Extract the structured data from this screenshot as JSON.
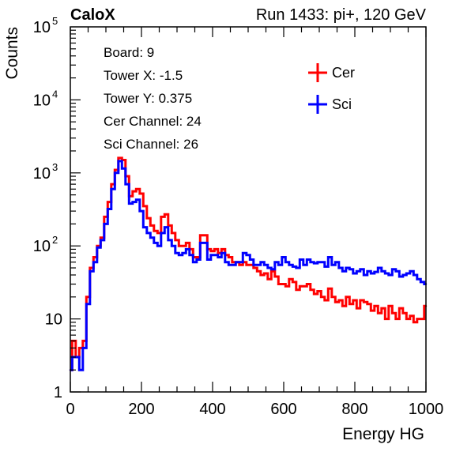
{
  "header": {
    "left_label": "CaloX",
    "right_label": "Run 1433: pi+, 120 GeV"
  },
  "info_box": [
    "Board: 9",
    "Tower X: -1.5",
    "Tower Y: 0.375",
    "Cer Channel: 24",
    "Sci Channel: 26"
  ],
  "colors": {
    "Cer": "#ff0000",
    "Sci": "#0000ff",
    "frame": "#000000"
  },
  "chart_data": {
    "type": "line",
    "xlabel": "Energy HG",
    "ylabel": "Counts",
    "xlim": [
      0,
      1000
    ],
    "ylim": [
      1,
      100000
    ],
    "yscale": "log",
    "x_ticks": [
      "0",
      "200",
      "400",
      "600",
      "800",
      "1000"
    ],
    "y_ticks": [
      {
        "value": 1,
        "base": "1",
        "exp": ""
      },
      {
        "value": 10,
        "base": "10",
        "exp": ""
      },
      {
        "value": 100,
        "base": "10",
        "exp": "2"
      },
      {
        "value": 1000,
        "base": "10",
        "exp": "3"
      },
      {
        "value": 10000,
        "base": "10",
        "exp": "4"
      },
      {
        "value": 100000,
        "base": "10",
        "exp": "5"
      }
    ],
    "legend_position": "top-right",
    "series": [
      {
        "name": "Cer",
        "x": [
          0,
          10,
          20,
          30,
          40,
          50,
          60,
          70,
          80,
          90,
          100,
          110,
          120,
          130,
          140,
          150,
          160,
          170,
          180,
          190,
          200,
          210,
          220,
          230,
          240,
          250,
          260,
          270,
          280,
          290,
          300,
          310,
          320,
          330,
          340,
          350,
          360,
          370,
          380,
          390,
          400,
          410,
          420,
          430,
          440,
          450,
          460,
          470,
          480,
          490,
          500,
          510,
          520,
          530,
          540,
          550,
          560,
          570,
          580,
          590,
          600,
          610,
          620,
          630,
          640,
          650,
          660,
          670,
          680,
          690,
          700,
          710,
          720,
          730,
          740,
          750,
          760,
          770,
          780,
          790,
          800,
          810,
          820,
          830,
          840,
          850,
          860,
          870,
          880,
          890,
          900,
          910,
          920,
          930,
          940,
          950,
          960,
          970,
          980,
          990,
          1000
        ],
        "y": [
          2,
          5,
          3,
          4,
          5,
          20,
          50,
          70,
          100,
          130,
          250,
          400,
          700,
          1100,
          1600,
          1500,
          900,
          480,
          560,
          600,
          520,
          350,
          240,
          190,
          160,
          150,
          250,
          270,
          190,
          150,
          120,
          100,
          100,
          110,
          90,
          70,
          70,
          140,
          140,
          90,
          85,
          90,
          80,
          90,
          75,
          70,
          60,
          60,
          55,
          60,
          55,
          55,
          50,
          45,
          40,
          42,
          35,
          45,
          38,
          30,
          30,
          28,
          35,
          32,
          25,
          28,
          28,
          30,
          25,
          22,
          24,
          20,
          18,
          26,
          20,
          17,
          18,
          15,
          20,
          16,
          18,
          14,
          18,
          17,
          16,
          13,
          15,
          12,
          14,
          10,
          15,
          12,
          10,
          14,
          12,
          10,
          11,
          9,
          10,
          10,
          15
        ]
      },
      {
        "name": "Sci",
        "x": [
          0,
          10,
          20,
          30,
          40,
          50,
          60,
          70,
          80,
          90,
          100,
          110,
          120,
          130,
          140,
          150,
          160,
          170,
          180,
          190,
          200,
          210,
          220,
          230,
          240,
          250,
          260,
          270,
          280,
          290,
          300,
          310,
          320,
          330,
          340,
          350,
          360,
          370,
          380,
          390,
          400,
          410,
          420,
          430,
          440,
          450,
          460,
          470,
          480,
          490,
          500,
          510,
          520,
          530,
          540,
          550,
          560,
          570,
          580,
          590,
          600,
          610,
          620,
          630,
          640,
          650,
          660,
          670,
          680,
          690,
          700,
          710,
          720,
          730,
          740,
          750,
          760,
          770,
          780,
          790,
          800,
          810,
          820,
          830,
          840,
          850,
          860,
          870,
          880,
          890,
          900,
          910,
          920,
          930,
          940,
          950,
          960,
          970,
          980,
          990,
          1000
        ],
        "y": [
          2,
          3,
          3,
          2,
          4,
          16,
          45,
          60,
          95,
          120,
          200,
          320,
          600,
          1000,
          1450,
          1150,
          700,
          380,
          400,
          430,
          300,
          180,
          150,
          130,
          110,
          100,
          150,
          180,
          120,
          100,
          80,
          75,
          80,
          90,
          75,
          60,
          65,
          110,
          110,
          65,
          75,
          75,
          70,
          80,
          60,
          55,
          55,
          60,
          60,
          80,
          75,
          65,
          55,
          55,
          60,
          55,
          50,
          48,
          60,
          55,
          70,
          60,
          55,
          52,
          50,
          65,
          55,
          65,
          60,
          58,
          60,
          60,
          52,
          70,
          55,
          60,
          50,
          45,
          50,
          48,
          42,
          45,
          48,
          40,
          45,
          42,
          44,
          50,
          45,
          42,
          40,
          48,
          45,
          38,
          40,
          42,
          45,
          40,
          35,
          32,
          30
        ]
      }
    ]
  }
}
